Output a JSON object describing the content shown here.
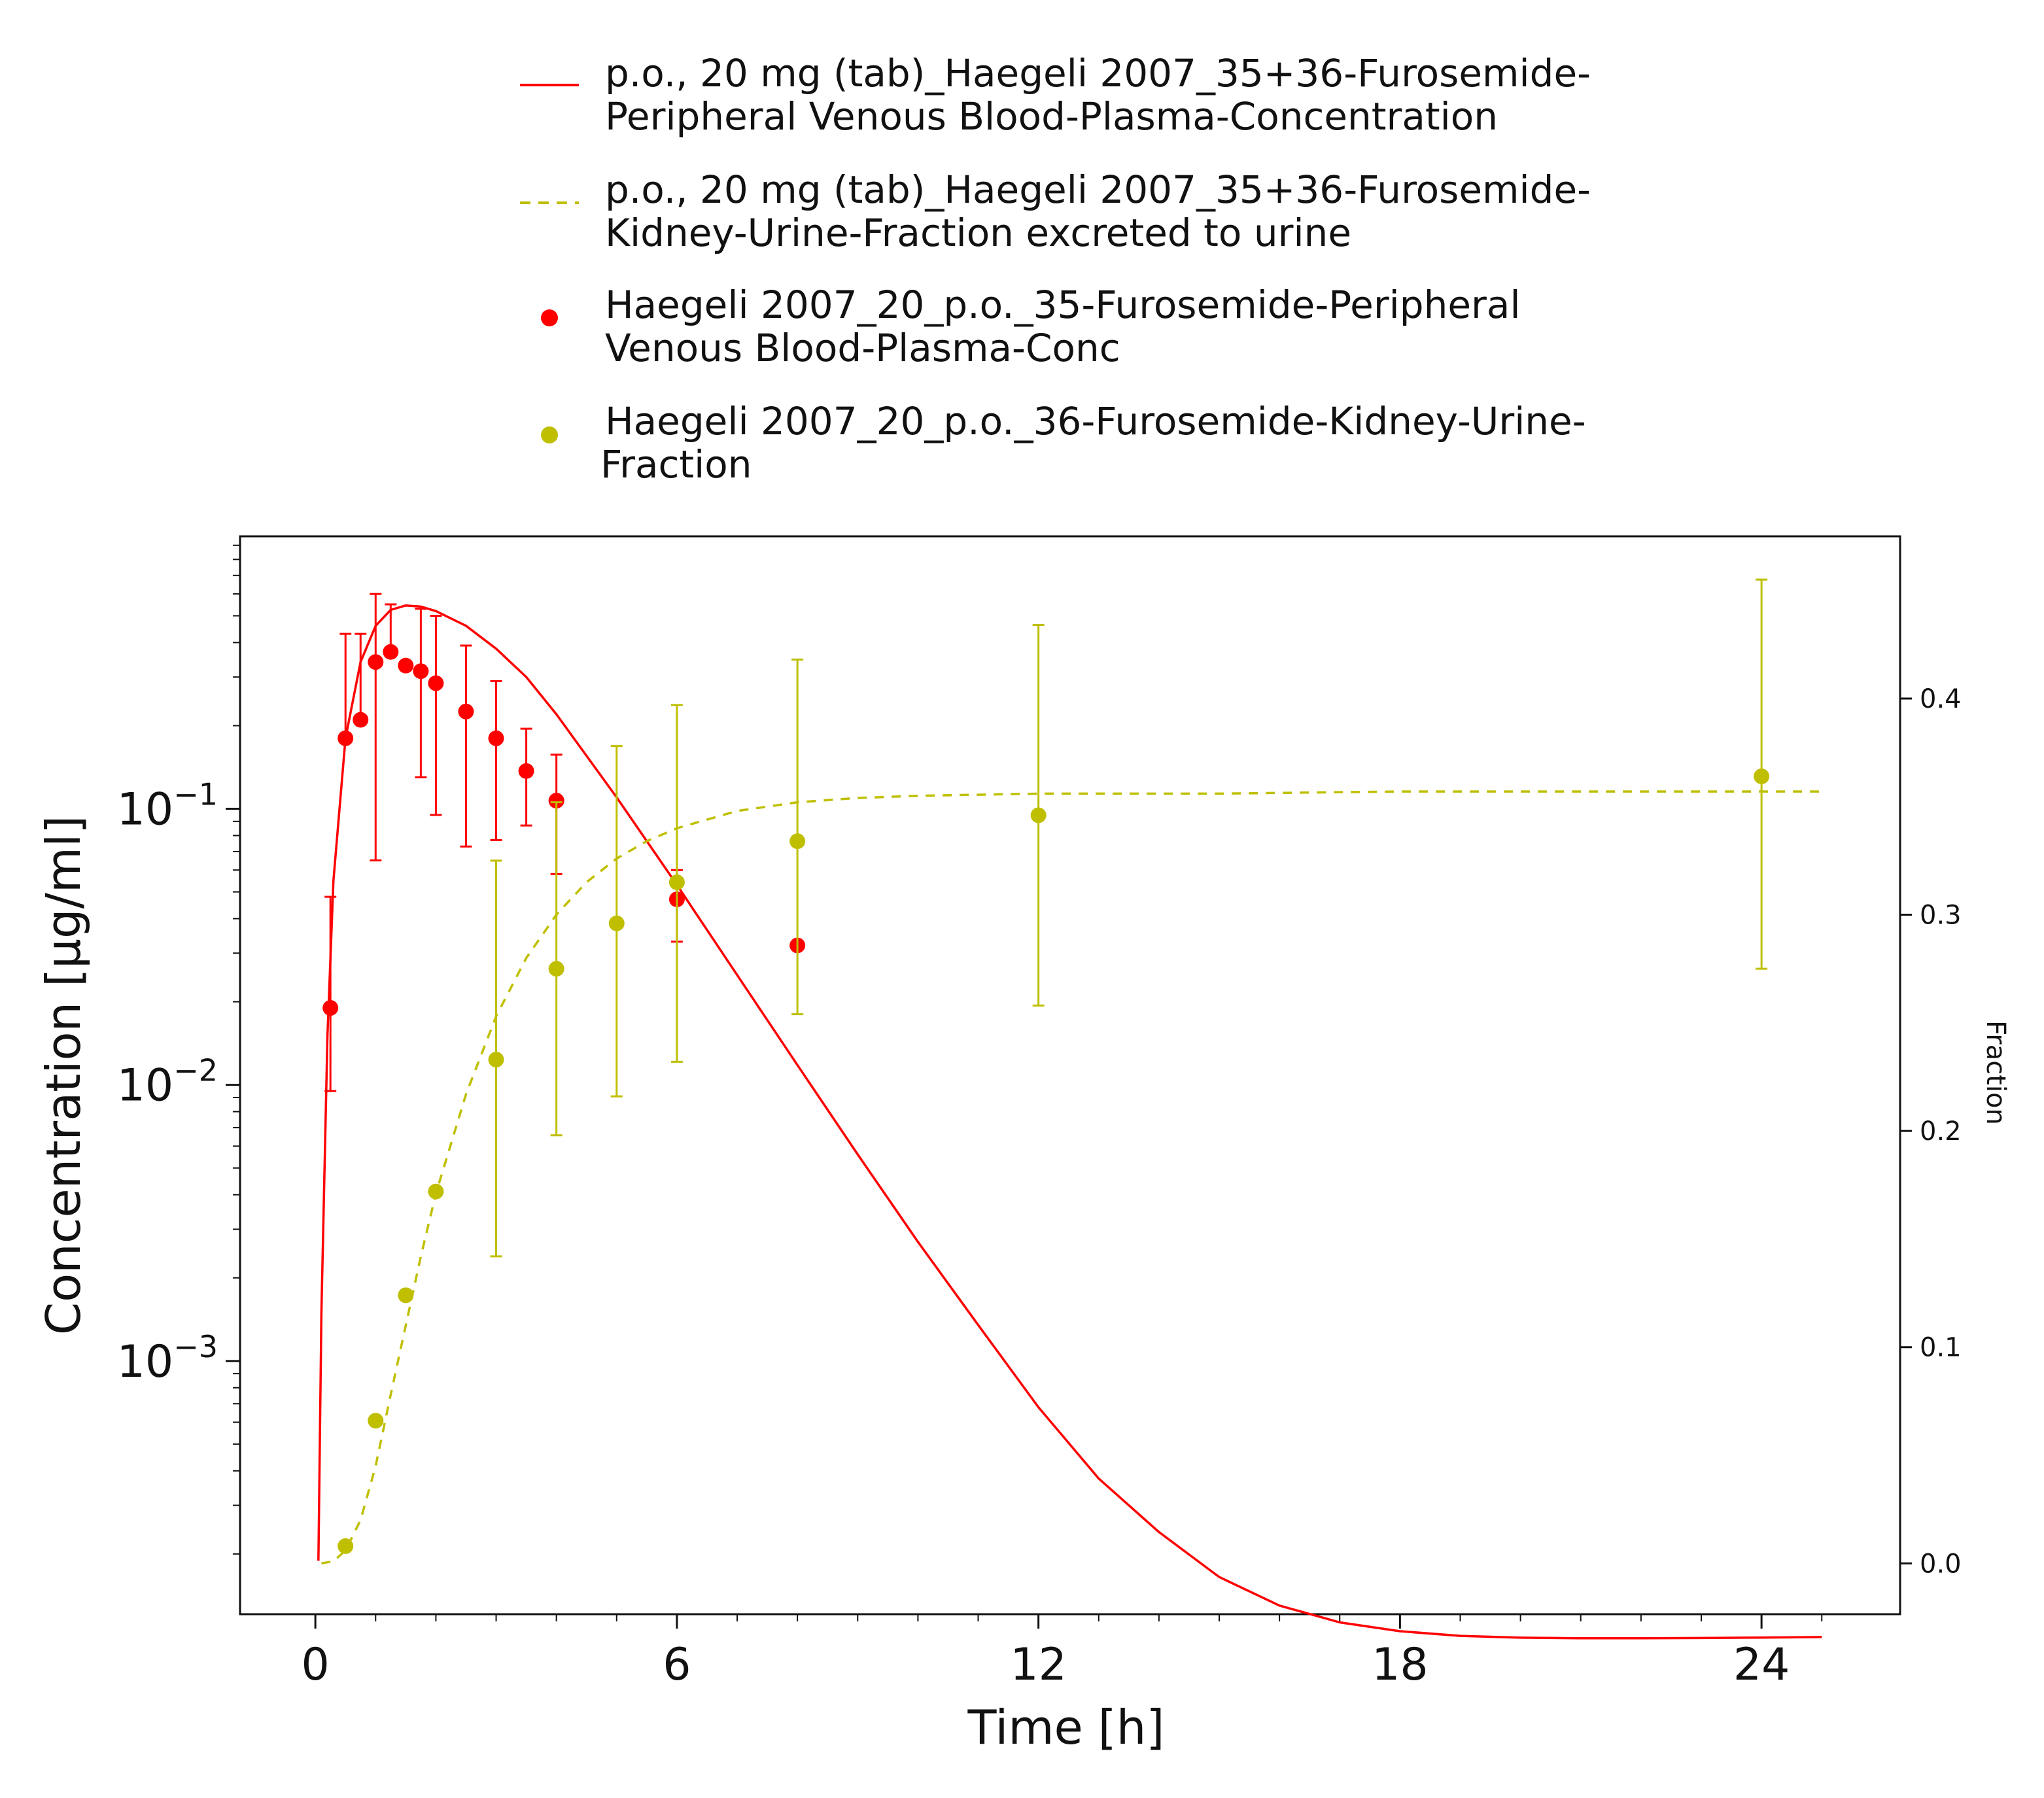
{
  "chart_data": {
    "type": "line",
    "xlabel": "Time [h]",
    "ylabel": "Concentration [µg/ml]",
    "y2label": "Fraction",
    "x_ticks": [
      0,
      6,
      12,
      18,
      24
    ],
    "xlim": [
      -1.25,
      26.3
    ],
    "y_scale": "log",
    "ylim": [
      0.000121,
      0.97
    ],
    "y_ticks": [
      {
        "value": 0.1,
        "base": "10",
        "exp": "−1"
      },
      {
        "value": 0.01,
        "base": "10",
        "exp": "−2"
      },
      {
        "value": 0.001,
        "base": "10",
        "exp": "−3"
      }
    ],
    "y2lim": [
      -0.0235,
      0.475
    ],
    "y2_ticks": [
      "0.0",
      "0.1",
      "0.2",
      "0.3",
      "0.4"
    ],
    "y2_tick_values": [
      0,
      0.1,
      0.2,
      0.3,
      0.4
    ],
    "legend_position": "top",
    "grid": false,
    "colors": {
      "red": "#ff0000",
      "olive": "#bfbf00"
    },
    "series": [
      {
        "name": "p.o., 20 mg (tab)_Haegeli 2007_35+36-Furosemide-Peripheral Venous Blood-Plasma-Concentration",
        "legend_lines": [
          "p.o., 20 mg (tab)_Haegeli 2007_35+36-Furosemide-",
          "Peripheral Venous Blood-Plasma-Concentration"
        ],
        "kind": "line",
        "style": "solid",
        "axis": "left",
        "color": "#ff0000",
        "x": [
          0.05,
          0.1,
          0.2,
          0.3,
          0.5,
          0.75,
          1.0,
          1.25,
          1.5,
          1.75,
          2.0,
          2.5,
          3.0,
          3.5,
          4.0,
          5.0,
          6.0,
          7.0,
          8.0,
          9.0,
          10.0,
          11.0,
          12.0,
          13.0,
          14.0,
          15.0,
          16.0,
          17.0,
          18.0,
          19.0,
          20.0,
          21.0,
          22.0,
          23.0,
          24.0,
          25.0
        ],
        "y": [
          0.000189,
          0.0015,
          0.015,
          0.055,
          0.18,
          0.34,
          0.46,
          0.525,
          0.545,
          0.54,
          0.52,
          0.46,
          0.38,
          0.3,
          0.22,
          0.11,
          0.053,
          0.025,
          0.0118,
          0.0056,
          0.0027,
          0.00135,
          0.00068,
          0.000375,
          0.00024,
          0.000165,
          0.00013,
          0.000113,
          0.000105,
          0.000101,
          9.95e-05,
          9.9e-05,
          9.9e-05,
          9.92e-05,
          9.96e-05,
          0.0001
        ]
      },
      {
        "name": "p.o., 20 mg (tab)_Haegeli 2007_35+36-Furosemide-Kidney-Urine-Fraction excreted to urine",
        "legend_lines": [
          "p.o., 20 mg (tab)_Haegeli 2007_35+36-Furosemide-",
          "Kidney-Urine-Fraction excreted to urine"
        ],
        "kind": "line",
        "style": "dashed",
        "axis": "right",
        "color": "#bfbf00",
        "x": [
          0.1,
          0.3,
          0.5,
          0.75,
          1.0,
          1.25,
          1.5,
          1.75,
          2.0,
          2.5,
          3.0,
          3.5,
          4.0,
          4.5,
          5.0,
          5.5,
          6.0,
          7.0,
          8.0,
          9.0,
          10.0,
          12.0,
          15.0,
          18.0,
          21.0,
          24.0,
          25.0
        ],
        "y": [
          0.0,
          0.001,
          0.006,
          0.02,
          0.045,
          0.078,
          0.11,
          0.142,
          0.171,
          0.217,
          0.253,
          0.28,
          0.3,
          0.315,
          0.326,
          0.334,
          0.34,
          0.348,
          0.352,
          0.354,
          0.355,
          0.356,
          0.356,
          0.357,
          0.357,
          0.357,
          0.357
        ]
      },
      {
        "name": "Haegeli 2007_20_p.o._35-Furosemide-Peripheral Venous Blood-Plasma-Conc",
        "legend_lines": [
          "Haegeli 2007_20_p.o._35-Furosemide-Peripheral",
          "Venous Blood-Plasma-Conc"
        ],
        "kind": "scatter",
        "axis": "left",
        "color": "#ff0000",
        "x": [
          0.25,
          0.5,
          0.75,
          1.0,
          1.25,
          1.5,
          1.75,
          2.0,
          2.5,
          3.0,
          3.5,
          4.0,
          6.0,
          8.0
        ],
        "y": [
          0.019,
          0.18,
          0.21,
          0.34,
          0.37,
          0.33,
          0.315,
          0.285,
          0.225,
          0.18,
          0.137,
          0.107,
          0.047,
          0.032
        ],
        "y_low": [
          0.0095,
          null,
          null,
          0.065,
          null,
          null,
          0.13,
          0.095,
          0.073,
          0.077,
          0.087,
          0.058,
          0.033,
          null
        ],
        "y_high": [
          0.048,
          0.43,
          0.43,
          0.6,
          0.55,
          null,
          0.53,
          0.5,
          0.39,
          0.29,
          0.195,
          0.157,
          0.06,
          null
        ]
      },
      {
        "name": "Haegeli 2007_20_p.o._36-Furosemide-Kidney-Urine-Fraction",
        "legend_lines": [
          "Haegeli 2007_20_p.o._36-Furosemide-Kidney-Urine-",
          "Fraction"
        ],
        "kind": "scatter",
        "axis": "right",
        "color": "#bfbf00",
        "x": [
          0.5,
          1.0,
          1.5,
          2.0,
          3.0,
          4.0,
          5.0,
          6.0,
          8.0,
          12.0,
          24.0
        ],
        "y": [
          0.008,
          0.066,
          0.124,
          0.172,
          0.233,
          0.275,
          0.296,
          0.315,
          0.334,
          0.346,
          0.364
        ],
        "y_low": [
          null,
          null,
          null,
          null,
          0.142,
          0.198,
          0.216,
          0.232,
          0.254,
          0.258,
          0.275
        ],
        "y_high": [
          null,
          null,
          null,
          null,
          0.325,
          0.352,
          0.378,
          0.397,
          0.418,
          0.434,
          0.455
        ]
      }
    ]
  }
}
